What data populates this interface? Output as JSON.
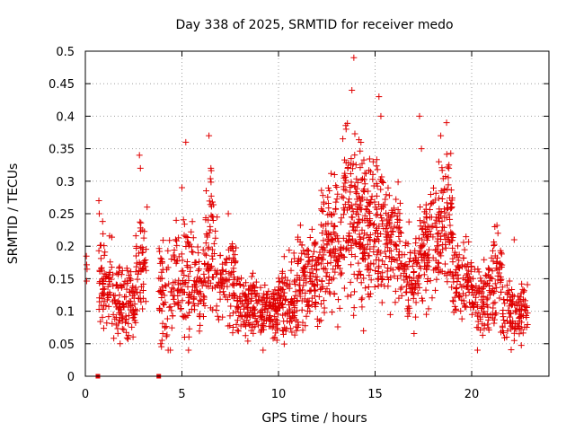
{
  "chart_data": {
    "type": "scatter",
    "title": "Day 338 of 2025, SRMTID for receiver medo",
    "xlabel": "GPS time / hours",
    "ylabel": "SRMTID / TECUs",
    "xlim": [
      0,
      24
    ],
    "ylim": [
      0,
      0.5
    ],
    "xticks": [
      0,
      5,
      10,
      15,
      20
    ],
    "yticks": [
      0,
      0.05,
      0.1,
      0.15,
      0.2,
      0.25,
      0.3,
      0.35,
      0.4,
      0.45,
      0.5
    ],
    "grid": true,
    "marker": "plus",
    "color": "#e00000",
    "zero_markers": [
      0.65,
      3.8
    ],
    "clusters": [
      {
        "x0": 0.0,
        "x1": 0.1,
        "center": 0.17,
        "spread": 0.02,
        "n": 4
      },
      {
        "x0": 0.7,
        "x1": 1.4,
        "center": 0.14,
        "spread": 0.05,
        "n": 70
      },
      {
        "x0": 1.4,
        "x1": 2.6,
        "center": 0.11,
        "spread": 0.035,
        "n": 110
      },
      {
        "x0": 2.6,
        "x1": 3.2,
        "center": 0.17,
        "spread": 0.05,
        "n": 55
      },
      {
        "x0": 3.8,
        "x1": 4.7,
        "center": 0.13,
        "spread": 0.05,
        "n": 70
      },
      {
        "x0": 4.7,
        "x1": 5.6,
        "center": 0.15,
        "spread": 0.06,
        "n": 80
      },
      {
        "x0": 5.6,
        "x1": 6.2,
        "center": 0.14,
        "spread": 0.04,
        "n": 55
      },
      {
        "x0": 6.2,
        "x1": 6.7,
        "center": 0.2,
        "spread": 0.06,
        "n": 50
      },
      {
        "x0": 6.7,
        "x1": 7.8,
        "center": 0.14,
        "spread": 0.045,
        "n": 90
      },
      {
        "x0": 7.8,
        "x1": 9.0,
        "center": 0.11,
        "spread": 0.03,
        "n": 110
      },
      {
        "x0": 9.0,
        "x1": 10.0,
        "center": 0.1,
        "spread": 0.025,
        "n": 100
      },
      {
        "x0": 10.0,
        "x1": 11.0,
        "center": 0.12,
        "spread": 0.035,
        "n": 100
      },
      {
        "x0": 11.0,
        "x1": 12.2,
        "center": 0.15,
        "spread": 0.045,
        "n": 120
      },
      {
        "x0": 12.2,
        "x1": 13.3,
        "center": 0.2,
        "spread": 0.06,
        "n": 130
      },
      {
        "x0": 13.3,
        "x1": 14.3,
        "center": 0.25,
        "spread": 0.075,
        "n": 130
      },
      {
        "x0": 14.3,
        "x1": 15.5,
        "center": 0.23,
        "spread": 0.065,
        "n": 150
      },
      {
        "x0": 15.5,
        "x1": 16.3,
        "center": 0.21,
        "spread": 0.05,
        "n": 90
      },
      {
        "x0": 16.3,
        "x1": 17.3,
        "center": 0.15,
        "spread": 0.04,
        "n": 90
      },
      {
        "x0": 17.3,
        "x1": 18.3,
        "center": 0.2,
        "spread": 0.06,
        "n": 110
      },
      {
        "x0": 18.3,
        "x1": 19.0,
        "center": 0.25,
        "spread": 0.065,
        "n": 80
      },
      {
        "x0": 19.0,
        "x1": 20.0,
        "center": 0.15,
        "spread": 0.04,
        "n": 90
      },
      {
        "x0": 20.0,
        "x1": 21.0,
        "center": 0.12,
        "spread": 0.035,
        "n": 90
      },
      {
        "x0": 21.0,
        "x1": 21.6,
        "center": 0.15,
        "spread": 0.05,
        "n": 55
      },
      {
        "x0": 21.6,
        "x1": 22.9,
        "center": 0.1,
        "spread": 0.03,
        "n": 110
      }
    ],
    "peaks": [
      {
        "x": 13.9,
        "y": 0.49
      },
      {
        "x": 13.8,
        "y": 0.44
      },
      {
        "x": 13.5,
        "y": 0.38
      },
      {
        "x": 15.2,
        "y": 0.43
      },
      {
        "x": 15.3,
        "y": 0.4
      },
      {
        "x": 17.3,
        "y": 0.4
      },
      {
        "x": 18.4,
        "y": 0.37
      },
      {
        "x": 18.7,
        "y": 0.39
      },
      {
        "x": 5.2,
        "y": 0.36
      },
      {
        "x": 6.4,
        "y": 0.37
      },
      {
        "x": 6.5,
        "y": 0.32
      },
      {
        "x": 2.8,
        "y": 0.34
      },
      {
        "x": 2.85,
        "y": 0.32
      },
      {
        "x": 0.7,
        "y": 0.27
      },
      {
        "x": 0.72,
        "y": 0.25
      },
      {
        "x": 5.0,
        "y": 0.29
      },
      {
        "x": 14.9,
        "y": 0.33
      },
      {
        "x": 17.4,
        "y": 0.35
      },
      {
        "x": 12.9,
        "y": 0.31
      },
      {
        "x": 18.3,
        "y": 0.33
      },
      {
        "x": 7.4,
        "y": 0.25
      },
      {
        "x": 21.2,
        "y": 0.23
      },
      {
        "x": 22.2,
        "y": 0.21
      },
      {
        "x": 20.3,
        "y": 0.04
      },
      {
        "x": 9.2,
        "y": 0.04
      },
      {
        "x": 3.9,
        "y": 0.05
      },
      {
        "x": 1.8,
        "y": 0.05
      },
      {
        "x": 14.4,
        "y": 0.07
      }
    ]
  }
}
